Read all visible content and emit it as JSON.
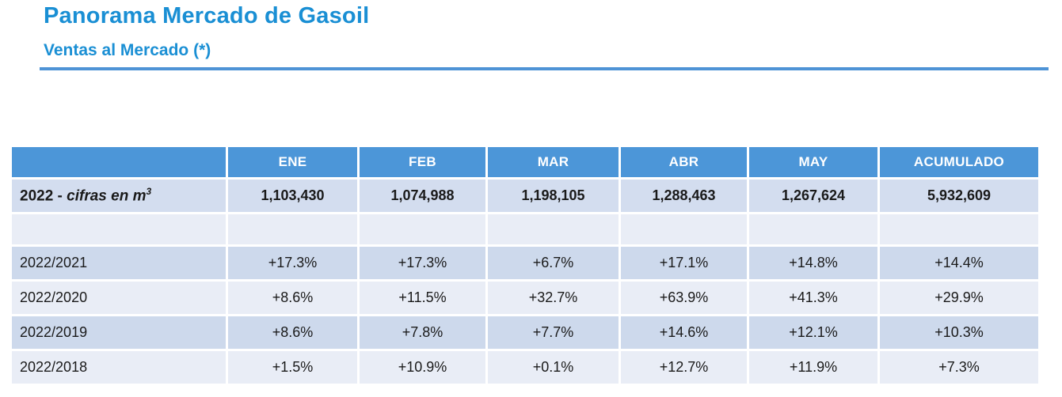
{
  "header": {
    "title": "Panorama Mercado de Gasoil",
    "subtitle": "Ventas al Mercado (*)"
  },
  "colors": {
    "title_blue": "#1a8fd4",
    "rule_blue": "#4e93d6",
    "header_bg": "#4c96d8",
    "band_dark": "#cdd9ec",
    "band_light": "#e9edf6",
    "volume_band": "#d3ddef",
    "value_text": "#1a1a1a",
    "header_text": "#ffffff"
  },
  "table": {
    "columns": [
      "",
      "ENE",
      "FEB",
      "MAR",
      "ABR",
      "MAY",
      "ACUMULADO"
    ],
    "volume_row": {
      "label_year": "2022",
      "label_sep": " - ",
      "label_unit": "cifras en m",
      "label_unit_sup": "3",
      "values": [
        "1,103,430",
        "1,074,988",
        "1,198,105",
        "1,288,463",
        "1,267,624",
        "5,932,609"
      ]
    },
    "comparison_rows": [
      {
        "label": "2022/2021",
        "values": [
          "+17.3%",
          "+17.3%",
          "+6.7%",
          "+17.1%",
          "+14.8%",
          "+14.4%"
        ]
      },
      {
        "label": "2022/2020",
        "values": [
          "+8.6%",
          "+11.5%",
          "+32.7%",
          "+63.9%",
          "+41.3%",
          "+29.9%"
        ]
      },
      {
        "label": "2022/2019",
        "values": [
          "+8.6%",
          "+7.8%",
          "+7.7%",
          "+14.6%",
          "+12.1%",
          "+10.3%"
        ]
      },
      {
        "label": "2022/2018",
        "values": [
          "+1.5%",
          "+10.9%",
          "+0.1%",
          "+12.7%",
          "+11.9%",
          "+7.3%"
        ]
      }
    ]
  }
}
